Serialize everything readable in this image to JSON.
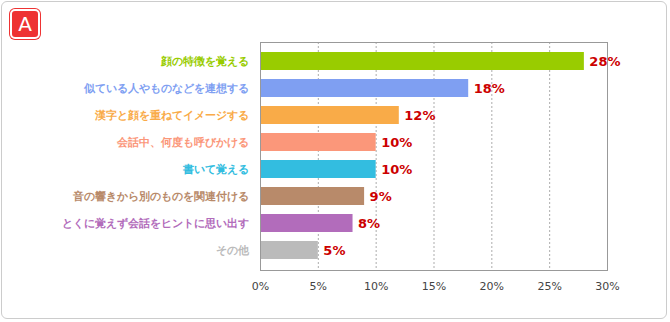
{
  "chart_data": {
    "type": "bar",
    "title": "A",
    "orientation": "horizontal",
    "categories": [
      "顔の特徴を覚える",
      "似ている人やものなどを連想する",
      "漢字と顔を重ねてイメージする",
      "会話中、何度も呼びかける",
      "書いて覚える",
      "音の響きから別のものを関連付ける",
      "とくに覚えず会話をヒントに思い出す",
      "その他"
    ],
    "values": [
      28,
      18,
      12,
      10,
      10,
      9,
      8,
      5
    ],
    "value_labels": [
      "28%",
      "18%",
      "12%",
      "10%",
      "10%",
      "9%",
      "8%",
      "5%"
    ],
    "colors": [
      "#99cc00",
      "#7f9ff2",
      "#f9ab48",
      "#fb977a",
      "#33bde0",
      "#b88a6a",
      "#b26cbb",
      "#bbbbbb"
    ],
    "xlim": [
      0,
      30
    ],
    "xticks": [
      {
        "value": 0,
        "label": "0%"
      },
      {
        "value": 5,
        "label": "5%"
      },
      {
        "value": 10,
        "label": "10%"
      },
      {
        "value": 15,
        "label": "15%"
      },
      {
        "value": 20,
        "label": "20%"
      },
      {
        "value": 25,
        "label": "25%"
      },
      {
        "value": 30,
        "label": "30%"
      }
    ],
    "grid": true,
    "data_labels": true
  }
}
